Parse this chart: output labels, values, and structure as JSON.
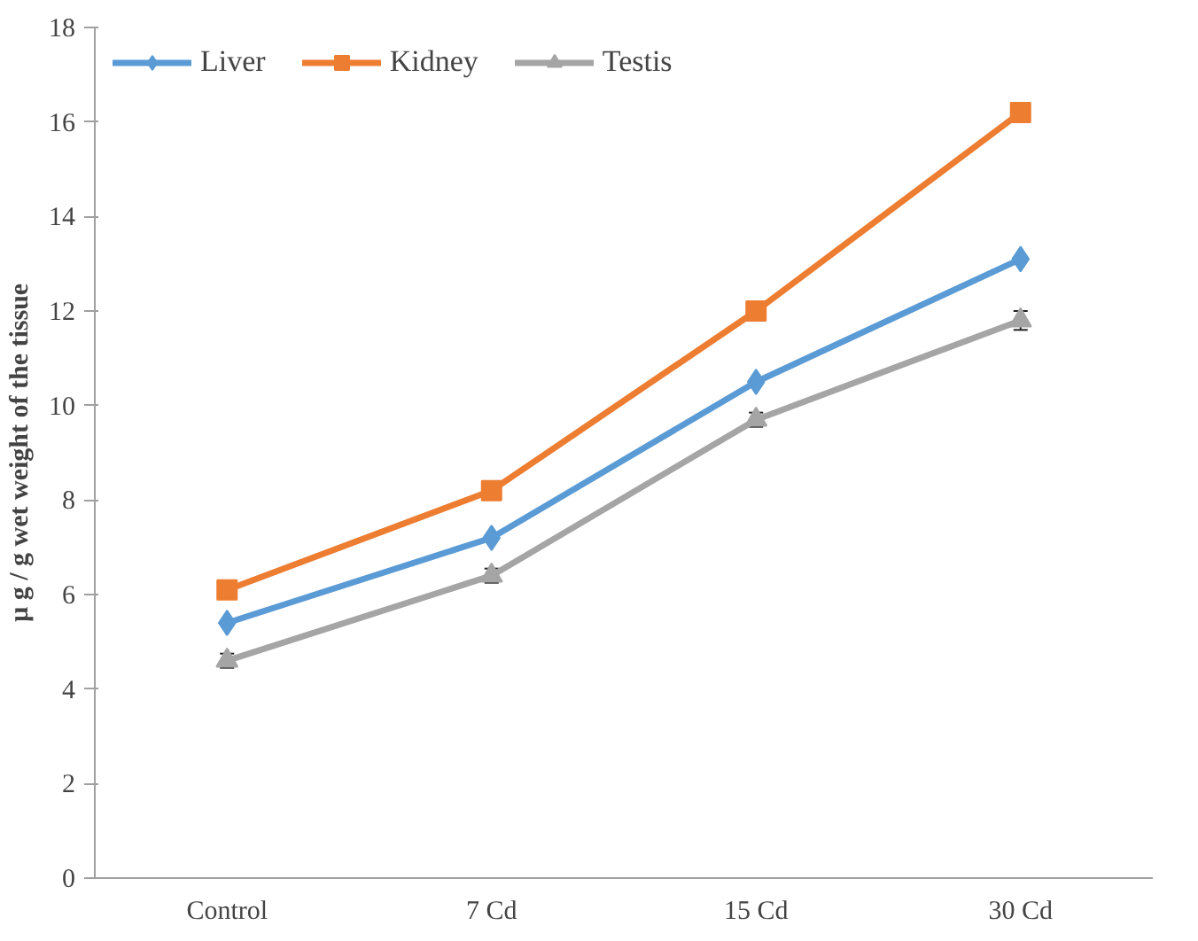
{
  "chart_data": {
    "type": "line",
    "ylabel": "µ g / g wet weight of the tissue",
    "categories": [
      "Control",
      "7 Cd",
      "15 Cd",
      "30 Cd"
    ],
    "series": [
      {
        "name": "Liver",
        "color": "#5b9bd5",
        "marker": "diamond",
        "values": [
          5.4,
          7.2,
          10.5,
          13.1
        ]
      },
      {
        "name": "Kidney",
        "color": "#ed7d31",
        "marker": "square",
        "values": [
          6.1,
          8.2,
          12.0,
          16.2
        ]
      },
      {
        "name": "Testis",
        "color": "#a5a5a5",
        "marker": "triangle",
        "values": [
          4.6,
          6.4,
          9.7,
          11.8
        ],
        "errors": [
          0.15,
          0.15,
          0.15,
          0.2
        ]
      }
    ],
    "ylim": [
      0,
      18
    ],
    "yticks": [
      0,
      2,
      4,
      6,
      8,
      10,
      12,
      14,
      16,
      18
    ],
    "grid": false,
    "legend": "top left"
  }
}
